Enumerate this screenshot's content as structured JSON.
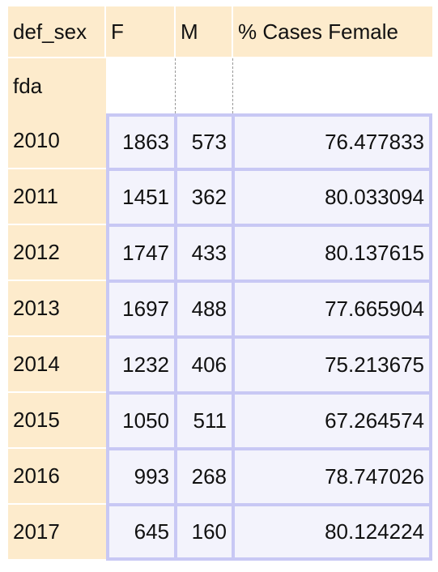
{
  "table": {
    "columns_name": "def_sex",
    "columns": [
      "F",
      "M",
      "% Cases Female"
    ],
    "index_name": "fda",
    "rows": [
      {
        "label": "2010",
        "F": "1863",
        "M": "573",
        "pct": "76.477833"
      },
      {
        "label": "2011",
        "F": "1451",
        "M": "362",
        "pct": "80.033094"
      },
      {
        "label": "2012",
        "F": "1747",
        "M": "433",
        "pct": "80.137615"
      },
      {
        "label": "2013",
        "F": "1697",
        "M": "488",
        "pct": "77.665904"
      },
      {
        "label": "2014",
        "F": "1232",
        "M": "406",
        "pct": "75.213675"
      },
      {
        "label": "2015",
        "F": "1050",
        "M": "511",
        "pct": "67.264574"
      },
      {
        "label": "2016",
        "F": "993",
        "M": "268",
        "pct": "78.747026"
      },
      {
        "label": "2017",
        "F": "645",
        "M": "160",
        "pct": "80.124224"
      }
    ]
  },
  "colors": {
    "header_bg": "#fdebcc",
    "cell_bg": "#f3f3fc",
    "cell_border": "#c8c8f4"
  }
}
